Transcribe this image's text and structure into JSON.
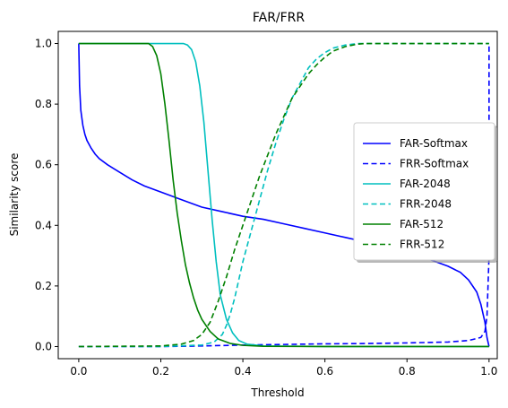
{
  "chart_data": {
    "type": "line",
    "title": "FAR/FRR",
    "xlabel": "Threshold",
    "ylabel": "Similarity score",
    "xlim": [
      -0.05,
      1.02
    ],
    "ylim": [
      -0.04,
      1.04
    ],
    "xticks": [
      0.0,
      0.2,
      0.4,
      0.6,
      0.8,
      1.0
    ],
    "xtick_labels": [
      "0.0",
      "0.2",
      "0.4",
      "0.6",
      "0.8",
      "1.0"
    ],
    "yticks": [
      0.0,
      0.2,
      0.4,
      0.6,
      0.8,
      1.0
    ],
    "ytick_labels": [
      "0.0",
      "0.2",
      "0.4",
      "0.6",
      "0.8",
      "1.0"
    ],
    "grid": false,
    "legend_position": "center-right",
    "series": [
      {
        "name": "FAR-Softmax",
        "color": "#0000ff",
        "dash": "solid",
        "x": [
          0.0,
          0.002,
          0.005,
          0.01,
          0.015,
          0.02,
          0.03,
          0.04,
          0.05,
          0.07,
          0.1,
          0.13,
          0.16,
          0.2,
          0.25,
          0.3,
          0.35,
          0.4,
          0.45,
          0.5,
          0.55,
          0.6,
          0.65,
          0.7,
          0.75,
          0.8,
          0.85,
          0.9,
          0.93,
          0.95,
          0.97,
          0.98,
          0.99,
          0.995,
          1.0
        ],
        "y": [
          1.0,
          0.86,
          0.78,
          0.73,
          0.7,
          0.68,
          0.655,
          0.635,
          0.62,
          0.6,
          0.575,
          0.55,
          0.53,
          0.51,
          0.485,
          0.46,
          0.445,
          0.43,
          0.42,
          0.405,
          0.39,
          0.375,
          0.36,
          0.345,
          0.33,
          0.31,
          0.29,
          0.265,
          0.245,
          0.22,
          0.18,
          0.14,
          0.08,
          0.03,
          0.0
        ]
      },
      {
        "name": "FRR-Softmax",
        "color": "#0000ff",
        "dash": "dashed",
        "x": [
          0.0,
          0.2,
          0.3,
          0.4,
          0.5,
          0.6,
          0.7,
          0.8,
          0.9,
          0.95,
          0.98,
          0.99,
          0.995,
          1.0,
          1.0
        ],
        "y": [
          0.0,
          0.0,
          0.002,
          0.005,
          0.007,
          0.009,
          0.01,
          0.012,
          0.015,
          0.02,
          0.03,
          0.05,
          0.1,
          0.3,
          1.0
        ]
      },
      {
        "name": "FAR-2048",
        "color": "#00bfbf",
        "dash": "solid",
        "x": [
          0.0,
          0.1,
          0.2,
          0.255,
          0.265,
          0.275,
          0.285,
          0.295,
          0.305,
          0.315,
          0.325,
          0.335,
          0.345,
          0.36,
          0.375,
          0.39,
          0.41,
          0.45,
          0.6,
          0.8,
          1.0
        ],
        "y": [
          1.0,
          1.0,
          1.0,
          1.0,
          0.995,
          0.98,
          0.94,
          0.86,
          0.74,
          0.58,
          0.42,
          0.28,
          0.17,
          0.09,
          0.045,
          0.02,
          0.008,
          0.002,
          0.0,
          0.0,
          0.0
        ]
      },
      {
        "name": "FRR-2048",
        "color": "#00bfbf",
        "dash": "dashed",
        "x": [
          0.0,
          0.2,
          0.3,
          0.33,
          0.35,
          0.36,
          0.37,
          0.38,
          0.39,
          0.4,
          0.42,
          0.44,
          0.46,
          0.48,
          0.5,
          0.52,
          0.54,
          0.56,
          0.58,
          0.6,
          0.62,
          0.65,
          0.68,
          0.7,
          0.8,
          1.0
        ],
        "y": [
          0.0,
          0.0,
          0.005,
          0.015,
          0.04,
          0.07,
          0.11,
          0.16,
          0.22,
          0.28,
          0.38,
          0.48,
          0.58,
          0.67,
          0.75,
          0.82,
          0.87,
          0.92,
          0.95,
          0.97,
          0.985,
          0.995,
          1.0,
          1.0,
          1.0,
          1.0
        ]
      },
      {
        "name": "FAR-512",
        "color": "#008000",
        "dash": "solid",
        "x": [
          0.0,
          0.1,
          0.17,
          0.18,
          0.19,
          0.2,
          0.21,
          0.22,
          0.23,
          0.24,
          0.25,
          0.26,
          0.27,
          0.28,
          0.29,
          0.3,
          0.32,
          0.34,
          0.37,
          0.4,
          0.45,
          0.6,
          0.8,
          1.0
        ],
        "y": [
          1.0,
          1.0,
          1.0,
          0.99,
          0.96,
          0.9,
          0.8,
          0.68,
          0.55,
          0.44,
          0.35,
          0.27,
          0.21,
          0.16,
          0.12,
          0.09,
          0.05,
          0.025,
          0.01,
          0.004,
          0.001,
          0.0,
          0.0,
          0.0
        ]
      },
      {
        "name": "FRR-512",
        "color": "#008000",
        "dash": "dashed",
        "x": [
          0.0,
          0.2,
          0.25,
          0.28,
          0.3,
          0.32,
          0.34,
          0.36,
          0.38,
          0.4,
          0.42,
          0.44,
          0.46,
          0.48,
          0.5,
          0.52,
          0.54,
          0.56,
          0.58,
          0.6,
          0.62,
          0.65,
          0.68,
          0.7,
          0.8,
          1.0
        ],
        "y": [
          0.0,
          0.002,
          0.008,
          0.02,
          0.04,
          0.08,
          0.15,
          0.23,
          0.32,
          0.4,
          0.48,
          0.56,
          0.63,
          0.7,
          0.76,
          0.82,
          0.86,
          0.9,
          0.93,
          0.955,
          0.975,
          0.99,
          0.998,
          1.0,
          1.0,
          1.0
        ]
      }
    ]
  }
}
